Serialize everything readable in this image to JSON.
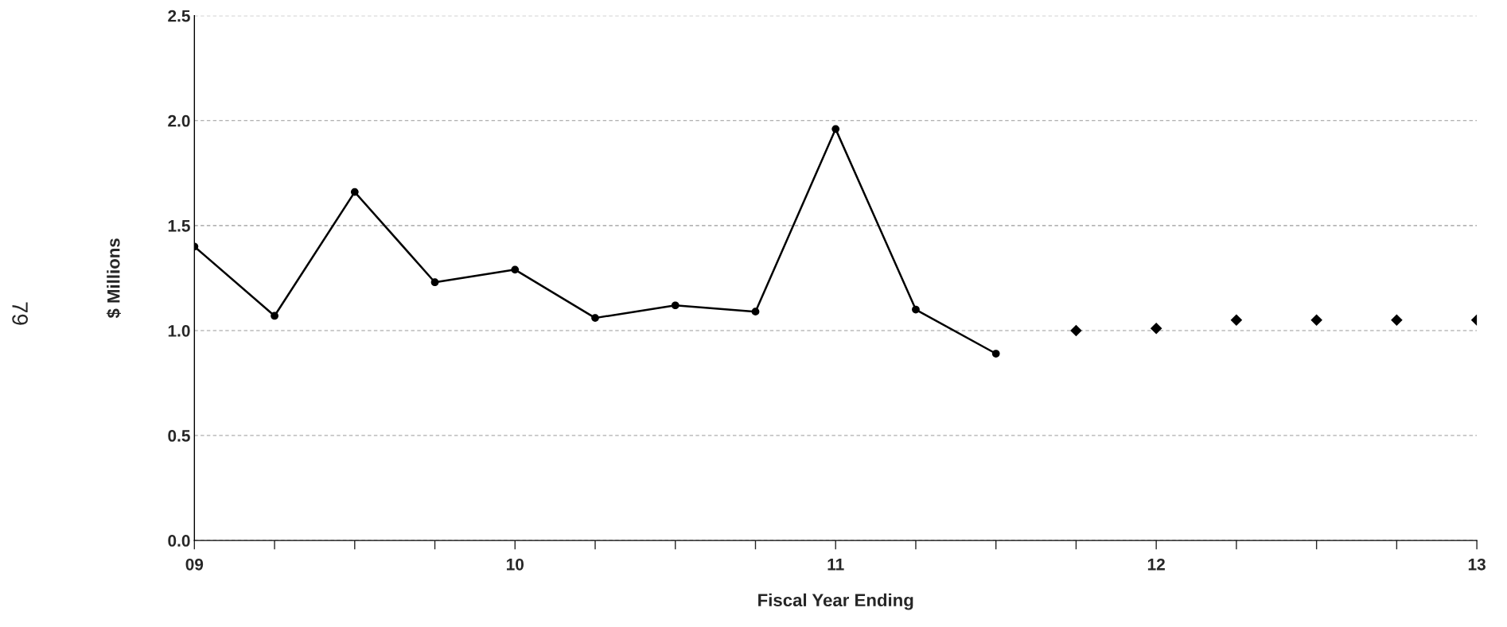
{
  "chart_data": {
    "type": "line",
    "xlabel": "Fiscal Year Ending",
    "ylabel": "$ Millions",
    "series": [
      {
        "color": "#000000",
        "marker": "circle",
        "line_style": "solid",
        "x": [
          9,
          9.25,
          9.5,
          9.75,
          10,
          10.25,
          10.5,
          10.75,
          11,
          11.25,
          11.5
        ],
        "values": [
          1.4,
          1.07,
          1.66,
          1.23,
          1.29,
          1.06,
          1.12,
          1.09,
          1.96,
          1.1,
          0.89
        ]
      },
      {
        "type": "scatter",
        "color": "#000000",
        "marker": "diamond",
        "x": [
          11.75,
          12,
          12.25,
          12.5,
          12.75,
          13
        ],
        "values": [
          1.0,
          1.01,
          1.05,
          1.05,
          1.05,
          1.05
        ]
      }
    ],
    "xlim": [
      9,
      13
    ],
    "xticks": [
      {
        "value": 9,
        "label": "09"
      },
      {
        "value": 9.25,
        "label": null
      },
      {
        "value": 9.5,
        "label": null
      },
      {
        "value": 9.75,
        "label": null
      },
      {
        "value": 10,
        "label": "10"
      },
      {
        "value": 10.25,
        "label": null
      },
      {
        "value": 10.5,
        "label": null
      },
      {
        "value": 10.75,
        "label": null
      },
      {
        "value": 11,
        "label": "11"
      },
      {
        "value": 11.25,
        "label": null
      },
      {
        "value": 11.5,
        "label": null
      },
      {
        "value": 11.75,
        "label": null
      },
      {
        "value": 12,
        "label": "12"
      },
      {
        "value": 12.25,
        "label": null
      },
      {
        "value": 12.5,
        "label": null
      },
      {
        "value": 12.75,
        "label": null
      },
      {
        "value": 13,
        "label": "13"
      }
    ],
    "ylim": [
      0,
      2.5
    ],
    "yticks": [
      {
        "value": 0,
        "label": "0.0"
      },
      {
        "value": 0.5,
        "label": "0.5"
      },
      {
        "value": 1,
        "label": "1.0"
      },
      {
        "value": 1.5,
        "label": "1.5"
      },
      {
        "value": 2,
        "label": "2.0"
      },
      {
        "value": 2.5,
        "label": "2.5"
      }
    ],
    "grid": "y",
    "legend": false,
    "annotations": [
      "79"
    ]
  }
}
